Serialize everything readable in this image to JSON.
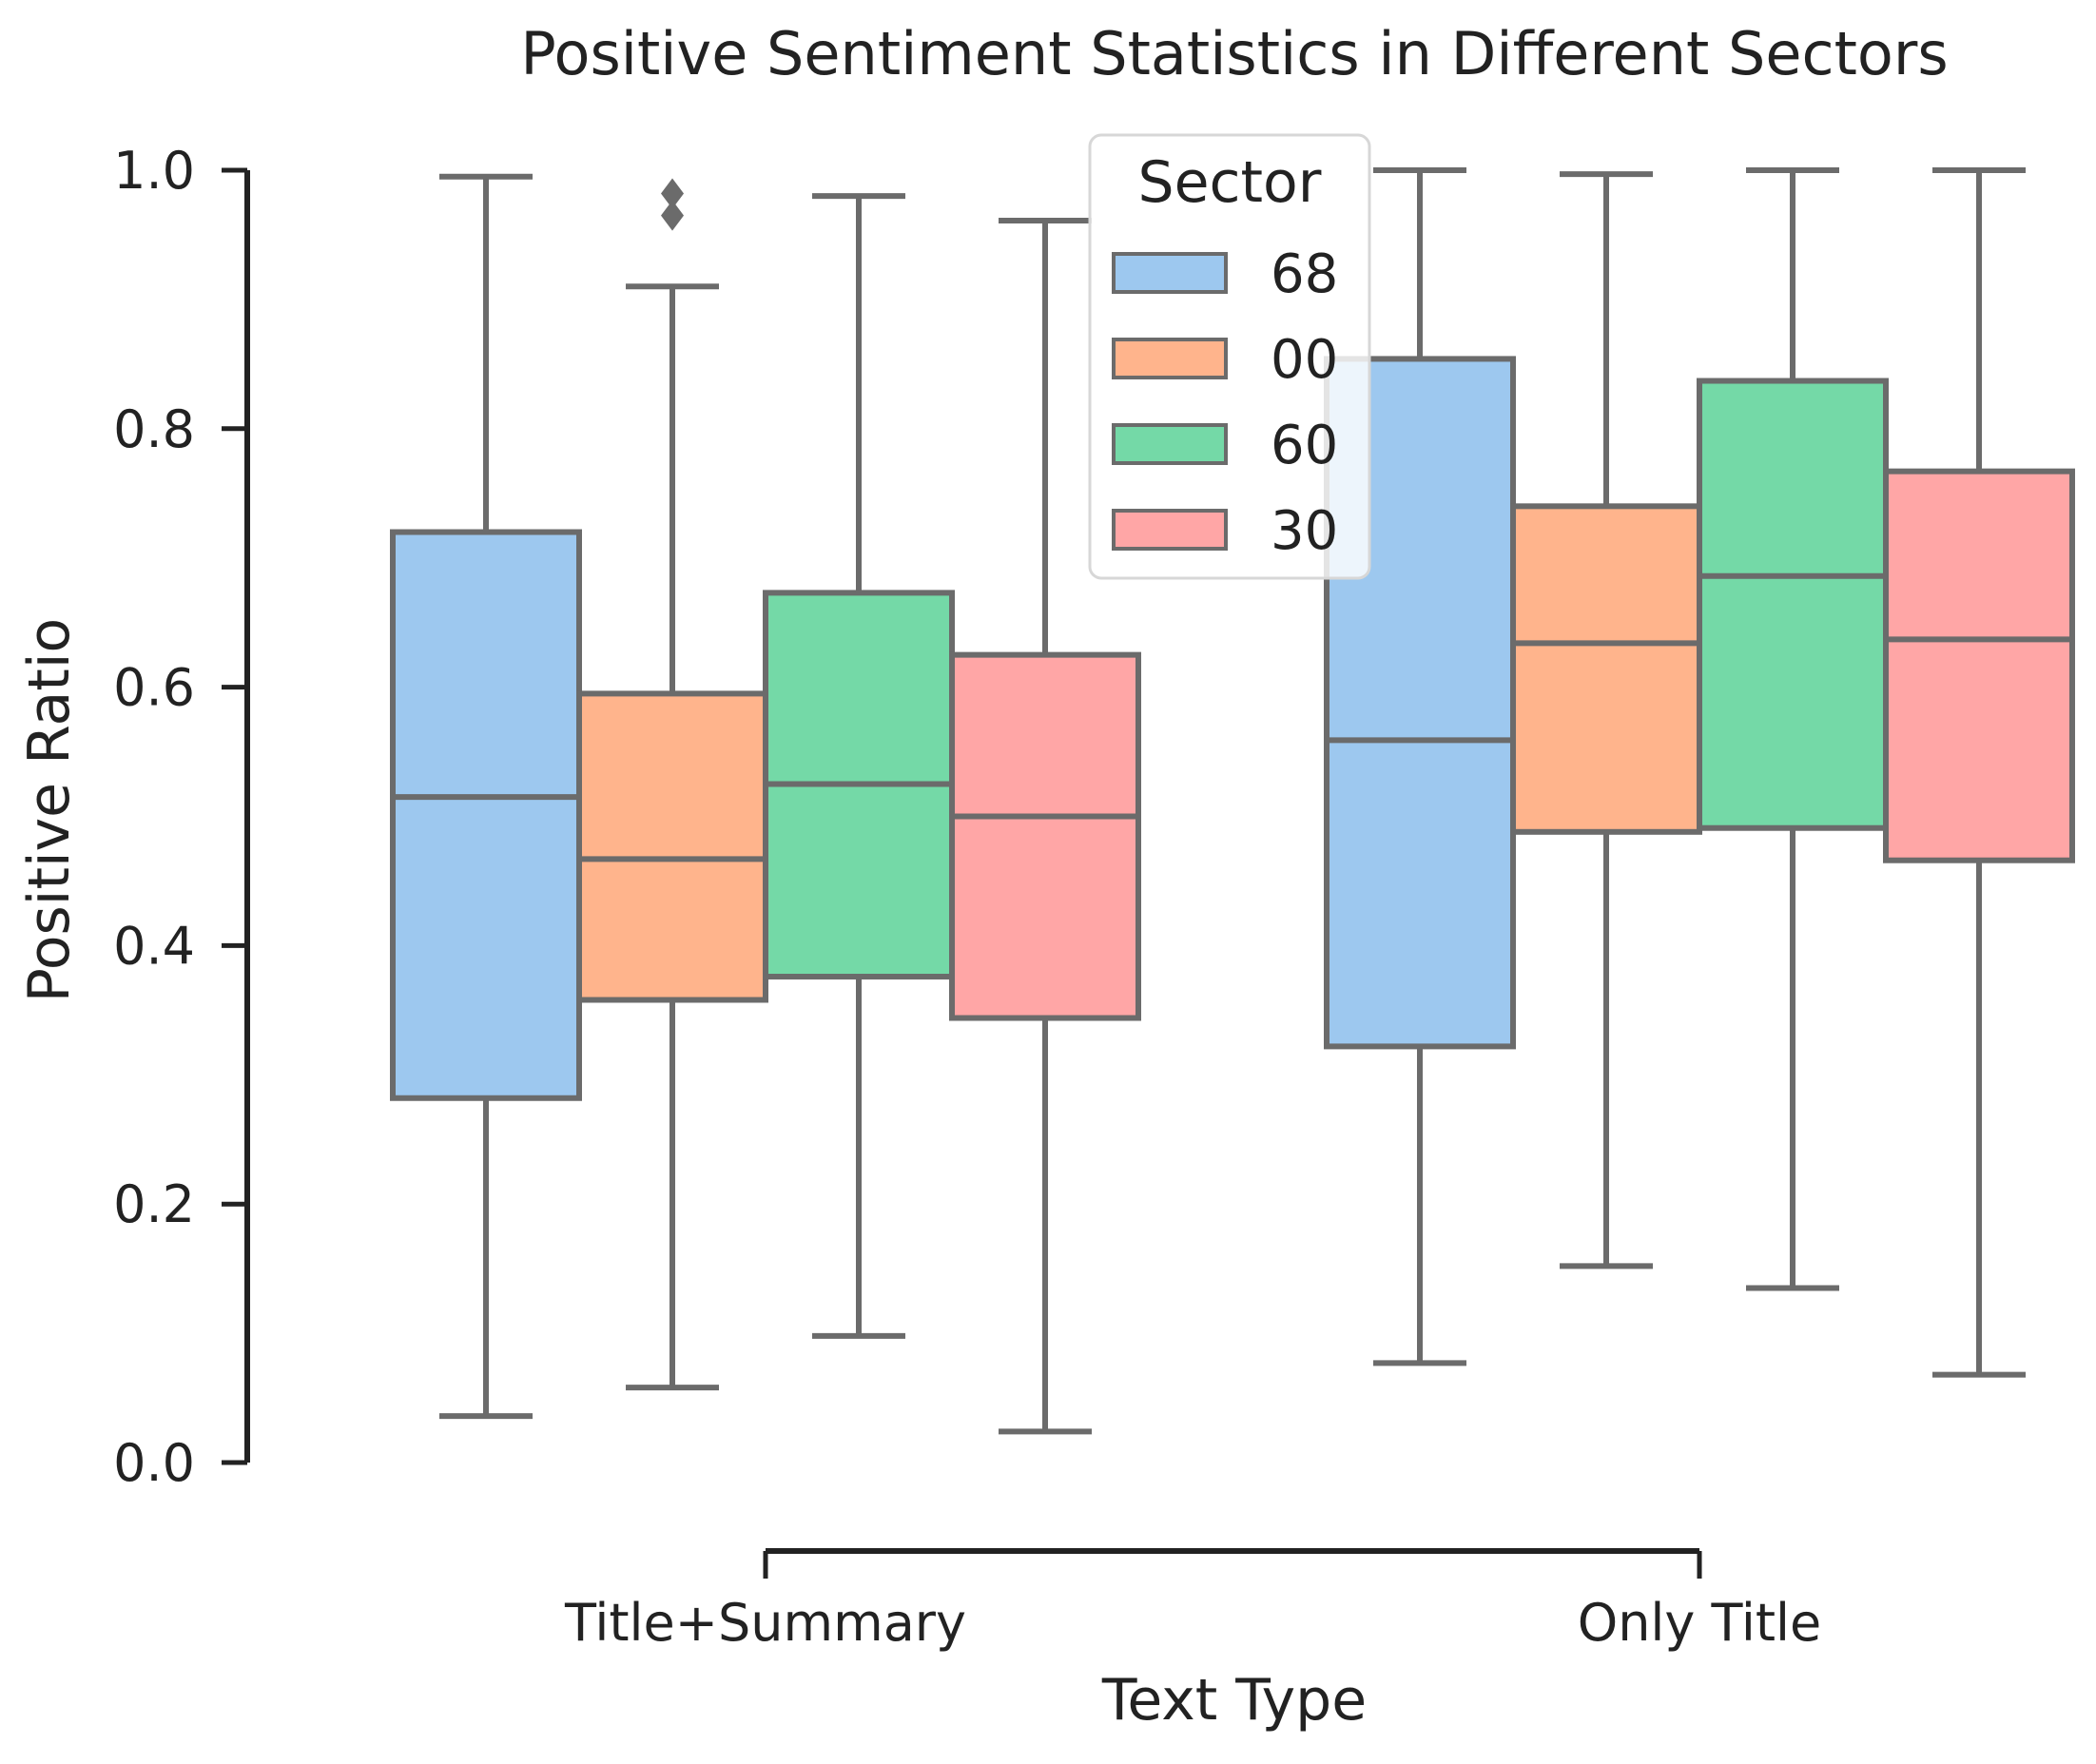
{
  "chart_data": {
    "type": "box",
    "title": "Positive Sentiment Statistics in Different Sectors",
    "xlabel": "Text Type",
    "ylabel": "Positive Ratio",
    "ylim": [
      0,
      1.0
    ],
    "yticks": [
      "0.0",
      "0.2",
      "0.4",
      "0.6",
      "0.8",
      "1.0"
    ],
    "categories": [
      "Title+Summary",
      "Only Title"
    ],
    "legend": {
      "title": "Sector",
      "placement": "top-center"
    },
    "series": [
      {
        "name": "68",
        "color": "#9dc8ef",
        "stats": [
          {
            "whislo": 0.036,
            "q1": 0.282,
            "med": 0.515,
            "q3": 0.72,
            "whishi": 0.995,
            "fliers": []
          },
          {
            "whislo": 0.077,
            "q1": 0.322,
            "med": 0.559,
            "q3": 0.854,
            "whishi": 1.0,
            "fliers": []
          }
        ]
      },
      {
        "name": "00",
        "color": "#ffb48c",
        "stats": [
          {
            "whislo": 0.058,
            "q1": 0.358,
            "med": 0.467,
            "q3": 0.595,
            "whishi": 0.91,
            "fliers": [
              0.965,
              0.982
            ]
          },
          {
            "whislo": 0.152,
            "q1": 0.488,
            "med": 0.634,
            "q3": 0.74,
            "whishi": 0.997,
            "fliers": []
          }
        ]
      },
      {
        "name": "60",
        "color": "#74d9a7",
        "stats": [
          {
            "whislo": 0.098,
            "q1": 0.376,
            "med": 0.525,
            "q3": 0.673,
            "whishi": 0.98,
            "fliers": []
          },
          {
            "whislo": 0.135,
            "q1": 0.491,
            "med": 0.686,
            "q3": 0.837,
            "whishi": 1.0,
            "fliers": []
          }
        ]
      },
      {
        "name": "30",
        "color": "#ffa6a6",
        "stats": [
          {
            "whislo": 0.024,
            "q1": 0.344,
            "med": 0.5,
            "q3": 0.625,
            "whishi": 0.961,
            "fliers": []
          },
          {
            "whislo": 0.068,
            "q1": 0.466,
            "med": 0.637,
            "q3": 0.767,
            "whishi": 1.0,
            "fliers": []
          }
        ]
      }
    ]
  }
}
